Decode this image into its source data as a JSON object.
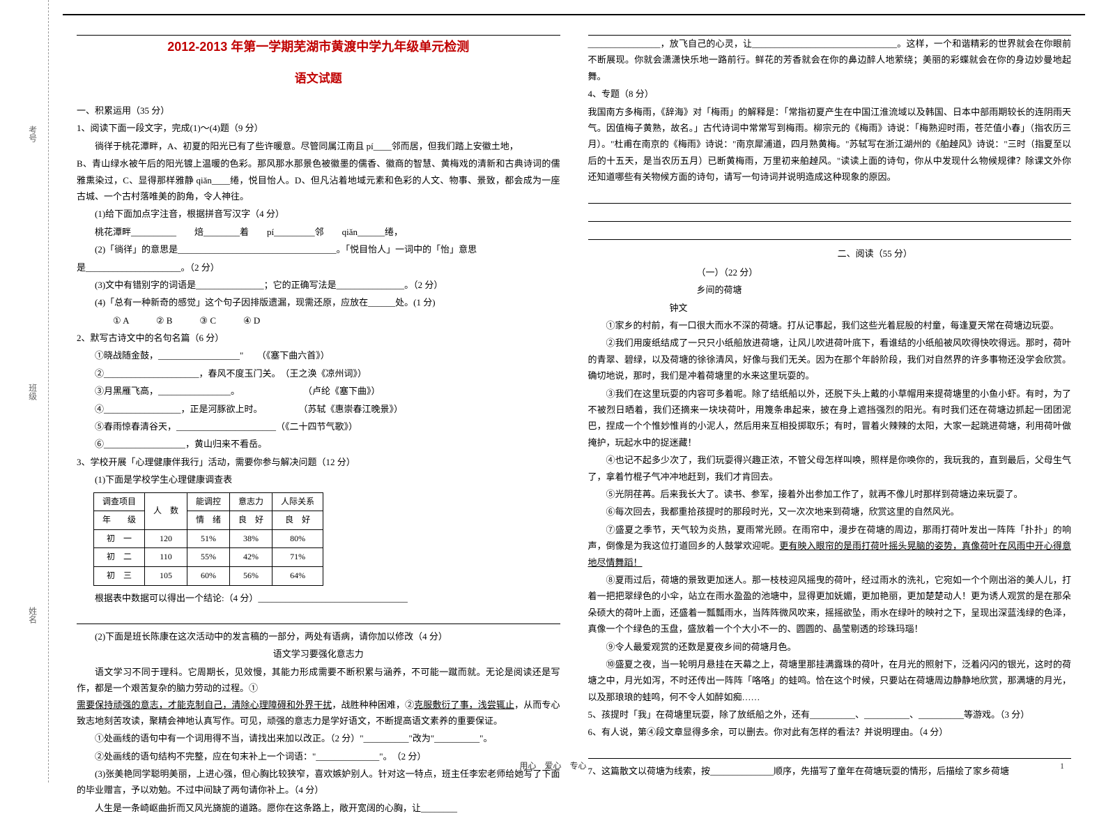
{
  "binding": {
    "top": "考号",
    "mid": "班级",
    "bot": "姓名"
  },
  "header": {
    "title": "2012-2013 年第一学期芜湖市黄渡中学九年级单元检测",
    "subtitle": "语文试题"
  },
  "left": {
    "sec1_title": "一、积累运用（35 分）",
    "q1": "1、阅读下面一段文字，完成(1)～(4)题（9 分）",
    "q1_body_a": "徜徉于桃花潭畔，A、初夏的阳光已有了些许暖意。尽管同属江南且 pí____邻而居，但我们踏上安徽土地，",
    "q1_body_b": "B、青山绿水被午后的阳光镀上温暖的色彩。那风那水那景色被徽墨的儒香、徽商的智慧、黄梅戏的清新和古典诗词的儒雅熏染过，C、显得那样雅静 qiǎn____绻，悦目怡人。D、但凡沾着地域元素和色彩的人文、物事、景致，都会成为一座古城、一个古村落唯美的韵角，令人神往。",
    "q1_1": "(1)给下面加点字注音，根据拼音写汉字（4 分）",
    "q1_1_items": "桃花潭畔__________　　焙________着　　pí_________邻　　qiǎn______绻，",
    "q1_2": "(2)「徜徉」的意思是___________________________________。「悦目怡人」一词中的「怡」意思",
    "q1_2b": "是_____________________。（2 分）",
    "q1_3": "(3)文中有错别字的词语是_______________；它的正确写法是_______________。（2 分）",
    "q1_4": "(4)「总有一种新奇的感觉」这个句子因排版遗漏，现需还原，应放在______处。(1 分)",
    "q1_4_opts": "① A　　　② B　　　③ C　　　④ D",
    "q2": "2、默写古诗文中的名句名篇（6 分）",
    "q2_1": "①晓战随金鼓，__________________\"　　（《塞下曲六首》）",
    "q2_2": "②_____________________，春风不度玉门关。　（王之涣《凉州词》）",
    "q2_3": "③月黑雁飞高，________________。　　　　　　　　（卢纶《塞下曲》）",
    "q2_4": "④_________________，正是河豚欲上时。　　　　　（苏轼《惠崇春江晚景》）",
    "q2_5": "⑤春雨惊春清谷天，______________________（《二十四节气歌》）",
    "q2_6": "⑥__________________，黄山归来不看岳。",
    "q3": "3、学校开展「心理健康伴我行」活动，需要你参与解决问题（12 分）",
    "q3_1": "(1)下面是学校学生心理健康调查表",
    "survey": {
      "headers_r1": [
        "调查项目",
        "人　数",
        "能调控",
        "意志力",
        "人际关系"
      ],
      "headers_r2": [
        "年　　级",
        "",
        "情　绪",
        "良　好",
        "良　好"
      ],
      "rows": [
        [
          "初　一",
          "120",
          "51%",
          "38%",
          "80%"
        ],
        [
          "初　二",
          "110",
          "55%",
          "42%",
          "71%"
        ],
        [
          "初　三",
          "105",
          "60%",
          "56%",
          "64%"
        ]
      ]
    },
    "q3_1_tail": "根据表中数据可以得出一个结论:（4 分）_________________________________",
    "q3_2": "(2)下面是班长陈康在这次活动中的发言稿的一部分，两处有语病，请你加以修改（4 分）",
    "q3_2_title": "语文学习要强化意志力",
    "q3_2_body": "语文学习不同于理科。它周期长，见效慢，其能力形成需要不断积累与涵养，不可能一蹴而就。无论是阅读还是写作，都是一个艰苦复杂的脑力劳动的过程。①",
    "q3_2_body_mid": "，战胜种种困难，②",
    "q3_2_body_u1": "需要保持顽强的意志，才能克制自己，清除心理障碍和外界干扰",
    "q3_2_body_u2": "克服敷衍了事，浅尝辄止",
    "q3_2_body_end": "，从而专心致志地刻苦攻读，聚精会神地认真写作。可见，顽强的意志力是学好语文，不断提高语文素养的重要保证。",
    "q3_2_a": "①处画线的语句中有一个词用得不当，请找出来加以改正。（2 分）\"__________\"改为\"__________\"。",
    "q3_2_b": "②处画线的语句结构不完整，应在句末补上一个词语：\"______________\"。　（2 分）",
    "q3_3": "(3)张美艳同学聪明美丽，上进心强，但心胸比较狭窄，喜欢嫉妒别人。针对这一特点，班主任李宏老师给她写了下面的毕业赠言，予以劝勉。不过中间缺了两句请你补上。（4 分）",
    "q3_3_body": "人生是一条崎岖曲折而又风光旖旎的道路。愿你在这条路上，敞开宽阔的心胸，让________"
  },
  "right": {
    "cont1": "________________，放飞自己的心灵，让________________________________。这样，一个和谐精彩的世界就会在你眼前不断展现。你就会潇潇快乐地一路前行。鲜花的芳香就会在你的鼻边醉人地萦绕；美丽的彩蝶就会在你的身边妙曼地起舞。",
    "q4": "4、专题（8 分）",
    "q4_body": "我国南方多梅雨，《辞海》对「梅雨」的解释是：「常指初夏产生在中国江淮流域以及韩国、日本中部雨期较长的连阴雨天气。因值梅子黄熟，故名。」古代诗词中常常写到梅雨。柳宗元的《梅雨》诗说：「梅熟迎时雨，苍茫值小春」（指农历三月）。\"杜甫在南京的《梅雨》诗说：\"南京犀浦道，四月熟黄梅。\"苏轼写在浙江湖州的《舶趠风》诗说：\"三时（指夏至以后的十五天，是当农历五月）已断黄梅雨，万里初来舶趠风。\"读读上面的诗句，你从中发现什么物候规律？除课文外你还知道哪些有关物候方面的诗句，请写一句诗词并说明造成这种现象的原因。",
    "sec2_title": "二、阅读（55 分）",
    "part1_title": "（一）（22 分）",
    "article_title": "乡间的荷塘",
    "article_author": "钟文",
    "p1": "①家乡的村前，有一口很大而水不深的荷塘。打从记事起，我们这些光着屁股的村童，每逢夏天常在荷塘边玩耍。",
    "p2": "②我们用废纸结成了一只只小纸船放进荷塘，让风儿吹进荷叶底下，看谁结的小纸船被风吹得快吹得远。那时，荷叶的青翠、碧绿，以及荷塘的徐徐清风，好像与我们无关。因为在那个年龄阶段，我们对自然界的许多事物还没学会欣赏。确切地说，那时，我们是冲着荷塘里的水来这里玩耍的。",
    "p3": "③我们在这里玩耍的内容可多着呢。除了结纸船以外，还脱下头上戴的小草帽用来提荷塘里的小鱼小虾。有时，为了不被烈日晒着，我们还摘来一块块荷叶，用篾条串起来，披在身上遮挡强烈的阳光。有时我们还在荷塘边抓起一团团泥巴，捏成一个个惟妙惟肖的小泥人，然后用来互相投掷取乐；有时，冒着火辣辣的太阳，大家一起跳进荷塘，利用荷叶做掩护，玩起水中的捉迷藏！",
    "p4": "④也记不起多少次了，我们玩耍得兴趣正浓，不管父母怎样叫唤，照样是你唤你的，我玩我的，直到最后，父母生气了，拿着竹棍子气冲冲地赶到，我们才肯回去。",
    "p5": "⑤光阴荏苒。后来我长大了。读书、参军，接着外出参加工作了，就再不像儿时那样到荷塘边来玩耍了。",
    "p6": "⑥每次回去，我都重拾孩提时的那段时光，又一次次地来到荷塘，欣赏这里的自然风光。",
    "p7": "⑦盛夏之季节，天气较为炎热，夏雨常光顾。在雨帘中，漫步在荷塘的周边，那雨打荷叶发出一阵阵「扑扑」的响声，倒像是为我这位打道回乡的人鼓掌欢迎呢。",
    "p7_u": "更有映入眼帘的是雨打荷叶摇头晃脑的姿势，真像荷叶在风雨中开心得意地尽情舞蹈！",
    "p8": "⑧夏雨过后，荷塘的景致更加迷人。那一枝枝迎风摇曳的荷叶，经过雨水的洗礼，它宛如一个个刚出浴的美人儿，打着一把把翠绿色的小伞，站立在雨水盈盈的池塘中，显得更加妩媚，更加艳丽，更加楚楚动人！更为诱人观赏的是在那朵朵硕大的荷叶上面，还盛着一瓢瓢雨水，当阵阵微风吹来，摇摇欲坠，雨水在绿叶的映衬之下，呈现出深蓝浅绿的色泽，真像一个个绿色的玉盘，盛放着一个个大小不一的、圆圆的、晶莹剔透的珍珠玛瑙！",
    "p9": "⑨令人最爱观赏的还数是夏夜乡间的荷塘月色。",
    "p10": "⑩盛夏之夜，当一轮明月悬挂在天幕之上，荷塘里那挂满露珠的荷叶，在月光的照射下，泛着闪闪的银光，这时的荷塘之中，月光如泻，不时还传出一阵阵「咯咯」的蛙鸣。恰在这个时候，只要站在荷塘周边静静地欣赏，那满塘的月光，以及那琅琅的蛙鸣，何不令人如醉如痴……",
    "q5": "5、孩提时「我」在荷塘里玩耍，除了放纸船之外，还有__________、__________、__________等游戏。（3 分）",
    "q6": "6、有人说，第④段文章显得多余，可以删去。你对此有怎样的看法？并说明理由。（4 分）",
    "q7": "7、这篇散文以荷塘为线索，按______________顺序，先描写了童年在荷塘玩耍的情形，后描绘了家乡荷塘"
  },
  "footer": {
    "center": "用心　爱心　专心",
    "page": "1"
  }
}
